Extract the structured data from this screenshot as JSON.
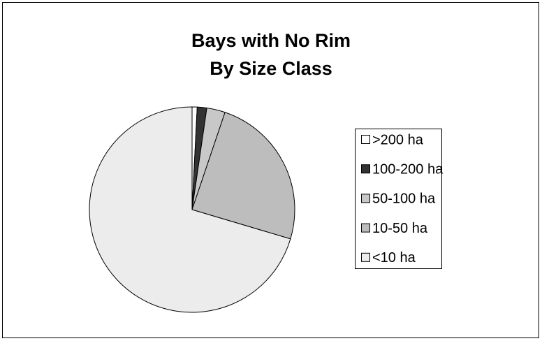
{
  "chart_data": {
    "type": "pie",
    "title": [
      "Bays with No Rim",
      "By Size Class"
    ],
    "categories": [
      ">200 ha",
      "100-200 ha",
      "50-100 ha",
      "10-50 ha",
      "<10 ha"
    ],
    "values": [
      0.8,
      1.5,
      2.9,
      24.4,
      70.4
    ],
    "colors": [
      "#ffffff",
      "#333333",
      "#c8c8c8",
      "#bdbdbd",
      "#ececec"
    ],
    "legend": "right"
  }
}
